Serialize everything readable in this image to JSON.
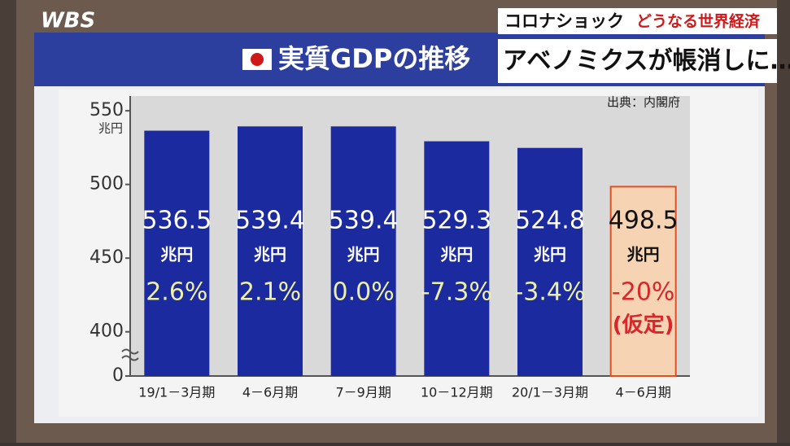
{
  "logo": "WBS",
  "banner": {
    "topic": "コロナショック",
    "subtopic": "どうなる世界経済",
    "headline": "アベノミクスが帳消しに…"
  },
  "chart_data": {
    "type": "bar",
    "title": "実質GDPの推移",
    "source": "出典：内閣府",
    "unit": "兆円",
    "categories": [
      "19/1－3月期",
      "4－6月期",
      "7－9月期",
      "10－12月期",
      "20/1－3月期",
      "4－6月期"
    ],
    "values": [
      536.5,
      539.4,
      539.4,
      529.3,
      524.8,
      498.5
    ],
    "colors": [
      "#1b2a9e",
      "#1b2a9e",
      "#1b2a9e",
      "#1b2a9e",
      "#1b2a9e",
      "#f6d3b3"
    ],
    "growth_labels": [
      "2.6%",
      "2.1%",
      "0.0%",
      "-7.3%",
      "-3.4%",
      "-20%"
    ],
    "growth_colors": [
      "#eef0a8",
      "#eef0a8",
      "#eef0a8",
      "#eef0a8",
      "#eef0a8",
      "#d8262a"
    ],
    "note": "(仮定)",
    "ylim": [
      0,
      560
    ],
    "y_break": [
      0,
      370
    ],
    "yticks": [
      0,
      400,
      450,
      500,
      550
    ],
    "grid": false
  }
}
